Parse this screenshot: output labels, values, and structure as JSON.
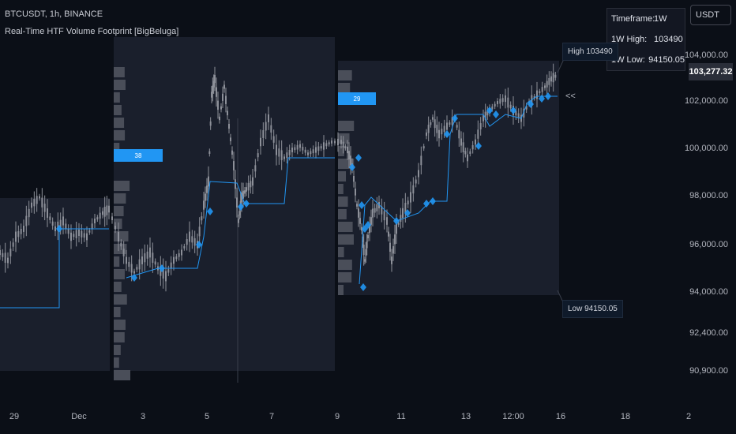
{
  "header": {
    "symbol": "BTCUSDT, 1h, BINANCE",
    "indicator": "Real-Time HTF Volume Footprint [BigBeluga]"
  },
  "info_table": {
    "rows": [
      {
        "label": "Timeframe:",
        "value": "1W"
      },
      {
        "label": "1W High:",
        "value": "103490"
      },
      {
        "label": "1W Low:",
        "value": "94150.05"
      }
    ]
  },
  "currency_button": "USDT",
  "last_price": "103,277.32",
  "high_callout": "High 103490",
  "low_callout": "Low 94150.05",
  "collapse_glyph": "<<",
  "colors": {
    "background": "#0b0f17",
    "box": "#1a1f2c",
    "volume_bar": "#4a4e59",
    "poc_bar": "#2196f3",
    "candle": "#8d9099",
    "poc_line": "#2196f3"
  },
  "chart_data": {
    "type": "candlestick",
    "y_axis": {
      "ticks": [
        "104,000.00",
        "102,000.00",
        "100,000.00",
        "98,000.00",
        "96,000.00",
        "94,000.00",
        "92,400.00",
        "90,900.00"
      ],
      "tick_values": [
        104000,
        102000,
        100000,
        98000,
        96000,
        94000,
        92400,
        90900
      ]
    },
    "x_axis": {
      "ticks": [
        "29",
        "Dec",
        "3",
        "5",
        "7",
        "9",
        "11",
        "13",
        "12:00",
        "16",
        "18",
        "2"
      ]
    },
    "weekly_boxes": [
      {
        "high": 98000,
        "low": 90700,
        "poc_price": 96600,
        "poc_volume": null
      },
      {
        "high": 104800,
        "low": 90700,
        "poc_price": 99800,
        "poc_volume": "38"
      },
      {
        "high": 103800,
        "low": 93900,
        "poc_price": 102200,
        "poc_volume": "29"
      }
    ],
    "weekly_high": 103490,
    "weekly_low": 94150.05
  }
}
